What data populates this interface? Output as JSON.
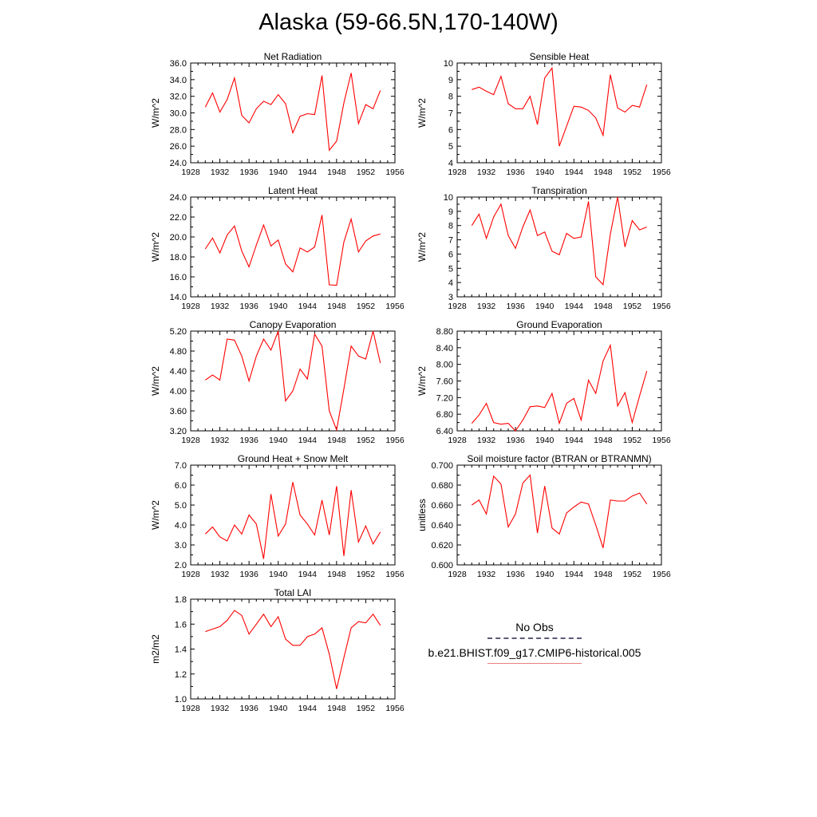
{
  "figure": {
    "title": "Alaska (59-66.5N,170-140W)"
  },
  "legend": {
    "items": [
      {
        "label": "No Obs",
        "style": "dashed",
        "color": "#5a5a7a"
      },
      {
        "label": "b.e21.BHIST.f09_g17.CMIP6-historical.005",
        "style": "solid",
        "color": "#e88080"
      }
    ]
  },
  "chart_data": [
    {
      "type": "line",
      "title": "Net Radiation",
      "ylabel": "W/m^2",
      "xlim": [
        1928,
        1956
      ],
      "ylim": [
        24,
        36
      ],
      "xticks": [
        "1928",
        "1932",
        "1936",
        "1940",
        "1944",
        "1948",
        "1952",
        "1956"
      ],
      "yticks": [
        "24.0",
        "26.0",
        "28.0",
        "30.0",
        "32.0",
        "34.0",
        "36.0"
      ],
      "x": [
        1930,
        1931,
        1932,
        1933,
        1934,
        1935,
        1936,
        1937,
        1938,
        1939,
        1940,
        1941,
        1942,
        1943,
        1944,
        1945,
        1946,
        1947,
        1948,
        1949,
        1950,
        1951,
        1952,
        1953,
        1954
      ],
      "series": [
        {
          "color": "#ff0000",
          "values": [
            30.7,
            32.4,
            30.1,
            31.6,
            34.2,
            29.7,
            28.8,
            30.5,
            31.4,
            31.0,
            32.2,
            31.1,
            27.6,
            29.6,
            29.9,
            29.8,
            34.5,
            25.5,
            26.6,
            31.2,
            34.8,
            28.7,
            31.0,
            30.5,
            32.7
          ]
        }
      ]
    },
    {
      "type": "line",
      "title": "Sensible Heat",
      "ylabel": "W/m^2",
      "xlim": [
        1928,
        1956
      ],
      "ylim": [
        4,
        10
      ],
      "xticks": [
        "1928",
        "1932",
        "1936",
        "1940",
        "1944",
        "1948",
        "1952",
        "1956"
      ],
      "yticks": [
        "4",
        "5",
        "6",
        "7",
        "8",
        "9",
        "10"
      ],
      "x": [
        1930,
        1931,
        1932,
        1933,
        1934,
        1935,
        1936,
        1937,
        1938,
        1939,
        1940,
        1941,
        1942,
        1943,
        1944,
        1945,
        1946,
        1947,
        1948,
        1949,
        1950,
        1951,
        1952,
        1953,
        1954
      ],
      "series": [
        {
          "color": "#ff0000",
          "values": [
            8.4,
            8.55,
            8.3,
            8.1,
            9.2,
            7.55,
            7.25,
            7.25,
            8.0,
            6.3,
            9.1,
            9.7,
            5.0,
            6.2,
            7.4,
            7.35,
            7.15,
            6.7,
            5.65,
            9.3,
            7.3,
            7.05,
            7.45,
            7.35,
            8.7
          ]
        }
      ]
    },
    {
      "type": "line",
      "title": "Latent Heat",
      "ylabel": "W/m^2",
      "xlim": [
        1928,
        1956
      ],
      "ylim": [
        14,
        24
      ],
      "xticks": [
        "1928",
        "1932",
        "1936",
        "1940",
        "1944",
        "1948",
        "1952",
        "1956"
      ],
      "yticks": [
        "14.0",
        "16.0",
        "18.0",
        "20.0",
        "22.0",
        "24.0"
      ],
      "x": [
        1930,
        1931,
        1932,
        1933,
        1934,
        1935,
        1936,
        1937,
        1938,
        1939,
        1940,
        1941,
        1942,
        1943,
        1944,
        1945,
        1946,
        1947,
        1948,
        1949,
        1950,
        1951,
        1952,
        1953,
        1954
      ],
      "series": [
        {
          "color": "#ff0000",
          "values": [
            18.8,
            19.9,
            18.4,
            20.2,
            21.1,
            18.6,
            17.0,
            19.2,
            21.2,
            19.1,
            19.7,
            17.3,
            16.5,
            18.9,
            18.5,
            19.0,
            22.2,
            15.2,
            15.15,
            19.5,
            21.8,
            18.5,
            19.6,
            20.1,
            20.3
          ]
        }
      ]
    },
    {
      "type": "line",
      "title": "Transpiration",
      "ylabel": "W/m^2",
      "xlim": [
        1928,
        1956
      ],
      "ylim": [
        3,
        10
      ],
      "xticks": [
        "1928",
        "1932",
        "1936",
        "1940",
        "1944",
        "1948",
        "1952",
        "1956"
      ],
      "yticks": [
        "3",
        "4",
        "5",
        "6",
        "7",
        "8",
        "9",
        "10"
      ],
      "x": [
        1930,
        1931,
        1932,
        1933,
        1934,
        1935,
        1936,
        1937,
        1938,
        1939,
        1940,
        1941,
        1942,
        1943,
        1944,
        1945,
        1946,
        1947,
        1948,
        1949,
        1950,
        1951,
        1952,
        1953,
        1954
      ],
      "series": [
        {
          "color": "#ff0000",
          "values": [
            8.0,
            8.8,
            7.1,
            8.6,
            9.5,
            7.3,
            6.4,
            7.9,
            9.1,
            7.3,
            7.55,
            6.2,
            5.95,
            7.45,
            7.1,
            7.2,
            9.7,
            4.4,
            3.85,
            7.4,
            10.0,
            6.5,
            8.35,
            7.7,
            7.9
          ]
        }
      ]
    },
    {
      "type": "line",
      "title": "Canopy Evaporation",
      "ylabel": "W/m^2",
      "xlim": [
        1928,
        1956
      ],
      "ylim": [
        3.2,
        5.2
      ],
      "xticks": [
        "1928",
        "1932",
        "1936",
        "1940",
        "1944",
        "1948",
        "1952",
        "1956"
      ],
      "yticks": [
        "3.20",
        "3.60",
        "4.00",
        "4.40",
        "4.80",
        "5.20"
      ],
      "x": [
        1930,
        1931,
        1932,
        1933,
        1934,
        1935,
        1936,
        1937,
        1938,
        1939,
        1940,
        1941,
        1942,
        1943,
        1944,
        1945,
        1946,
        1947,
        1948,
        1949,
        1950,
        1951,
        1952,
        1953,
        1954
      ],
      "series": [
        {
          "color": "#ff0000",
          "values": [
            4.22,
            4.32,
            4.22,
            5.04,
            5.02,
            4.7,
            4.2,
            4.7,
            5.04,
            4.82,
            5.2,
            3.8,
            4.0,
            4.44,
            4.24,
            5.14,
            4.9,
            3.6,
            3.22,
            4.04,
            4.9,
            4.7,
            4.64,
            5.2,
            4.56
          ]
        }
      ]
    },
    {
      "type": "line",
      "title": "Ground Evaporation",
      "ylabel": "W/m^2",
      "xlim": [
        1928,
        1956
      ],
      "ylim": [
        6.4,
        8.8
      ],
      "xticks": [
        "1928",
        "1932",
        "1936",
        "1940",
        "1944",
        "1948",
        "1952",
        "1956"
      ],
      "yticks": [
        "6.40",
        "6.80",
        "7.20",
        "7.60",
        "8.00",
        "8.40",
        "8.80"
      ],
      "x": [
        1930,
        1931,
        1932,
        1933,
        1934,
        1935,
        1936,
        1937,
        1938,
        1939,
        1940,
        1941,
        1942,
        1943,
        1944,
        1945,
        1946,
        1947,
        1948,
        1949,
        1950,
        1951,
        1952,
        1953,
        1954
      ],
      "series": [
        {
          "color": "#ff0000",
          "values": [
            6.58,
            6.78,
            7.06,
            6.6,
            6.56,
            6.58,
            6.4,
            6.66,
            6.98,
            7.0,
            6.96,
            7.3,
            6.58,
            7.06,
            7.18,
            6.66,
            7.62,
            7.3,
            8.08,
            8.46,
            7.0,
            7.32,
            6.6,
            7.24,
            7.84
          ]
        }
      ]
    },
    {
      "type": "line",
      "title": "Ground Heat + Snow Melt",
      "ylabel": "W/m^2",
      "xlim": [
        1928,
        1956
      ],
      "ylim": [
        2,
        7
      ],
      "xticks": [
        "1928",
        "1932",
        "1936",
        "1940",
        "1944",
        "1948",
        "1952",
        "1956"
      ],
      "yticks": [
        "2.0",
        "3.0",
        "4.0",
        "5.0",
        "6.0",
        "7.0"
      ],
      "x": [
        1930,
        1931,
        1932,
        1933,
        1934,
        1935,
        1936,
        1937,
        1938,
        1939,
        1940,
        1941,
        1942,
        1943,
        1944,
        1945,
        1946,
        1947,
        1948,
        1949,
        1950,
        1951,
        1952,
        1953,
        1954
      ],
      "series": [
        {
          "color": "#ff0000",
          "values": [
            3.55,
            3.9,
            3.4,
            3.2,
            4.0,
            3.55,
            4.5,
            4.05,
            2.3,
            5.55,
            3.45,
            4.05,
            6.15,
            4.5,
            4.05,
            3.5,
            5.25,
            3.5,
            5.95,
            2.45,
            5.75,
            3.15,
            3.95,
            3.05,
            3.65
          ]
        }
      ]
    },
    {
      "type": "line",
      "title": "Soil moisture factor (BTRAN or BTRANMN)",
      "ylabel": "unitless",
      "xlim": [
        1928,
        1956
      ],
      "ylim": [
        0.6,
        0.7
      ],
      "xticks": [
        "1928",
        "1932",
        "1936",
        "1940",
        "1944",
        "1948",
        "1952",
        "1956"
      ],
      "yticks": [
        "0.600",
        "0.620",
        "0.640",
        "0.660",
        "0.680",
        "0.700"
      ],
      "x": [
        1930,
        1931,
        1932,
        1933,
        1934,
        1935,
        1936,
        1937,
        1938,
        1939,
        1940,
        1941,
        1942,
        1943,
        1944,
        1945,
        1946,
        1947,
        1948,
        1949,
        1950,
        1951,
        1952,
        1953,
        1954
      ],
      "series": [
        {
          "color": "#ff0000",
          "values": [
            0.66,
            0.665,
            0.651,
            0.689,
            0.681,
            0.638,
            0.651,
            0.682,
            0.69,
            0.632,
            0.679,
            0.637,
            0.631,
            0.652,
            0.658,
            0.663,
            0.661,
            0.64,
            0.617,
            0.665,
            0.664,
            0.664,
            0.669,
            0.672,
            0.661
          ]
        }
      ]
    },
    {
      "type": "line",
      "title": "Total LAI",
      "ylabel": "m2/m2",
      "xlim": [
        1928,
        1956
      ],
      "ylim": [
        1.0,
        1.8
      ],
      "xticks": [
        "1928",
        "1932",
        "1936",
        "1940",
        "1944",
        "1948",
        "1952",
        "1956"
      ],
      "yticks": [
        "1.0",
        "1.2",
        "1.4",
        "1.6",
        "1.8"
      ],
      "x": [
        1930,
        1931,
        1932,
        1933,
        1934,
        1935,
        1936,
        1937,
        1938,
        1939,
        1940,
        1941,
        1942,
        1943,
        1944,
        1945,
        1946,
        1947,
        1948,
        1949,
        1950,
        1951,
        1952,
        1953,
        1954
      ],
      "series": [
        {
          "color": "#ff0000",
          "values": [
            1.54,
            1.56,
            1.58,
            1.63,
            1.71,
            1.67,
            1.52,
            1.6,
            1.68,
            1.58,
            1.66,
            1.48,
            1.43,
            1.43,
            1.5,
            1.52,
            1.57,
            1.36,
            1.08,
            1.33,
            1.57,
            1.62,
            1.61,
            1.68,
            1.59
          ]
        }
      ]
    }
  ]
}
